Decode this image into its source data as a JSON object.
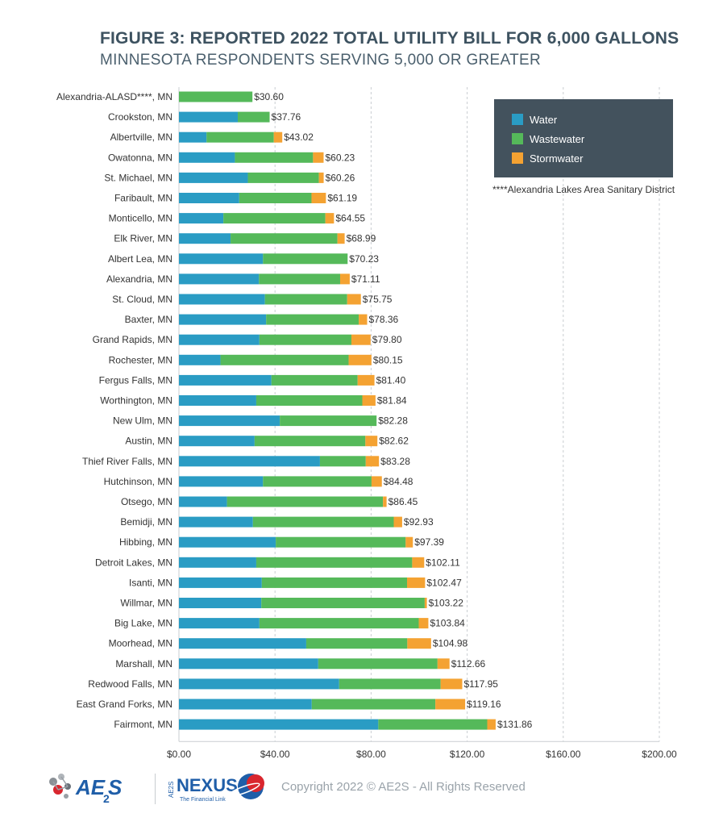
{
  "title": "FIGURE 3: REPORTED 2022 TOTAL UTILITY BILL FOR 6,000 GALLONS",
  "subtitle": "MINNESOTA RESPONDENTS SERVING 5,000 OR GREATER",
  "legend": {
    "items": [
      {
        "label": "Water",
        "color": "#2a9cc4"
      },
      {
        "label": "Wastewater",
        "color": "#55b95a"
      },
      {
        "label": "Stormwater",
        "color": "#f4a232"
      }
    ]
  },
  "footnote": "****Alexandria Lakes Area Sanitary District",
  "footer": {
    "logo_text": "AE2S",
    "nexus_text": "NEXUS",
    "nexus_prefix": "AE2S",
    "nexus_tagline": "The Financial Link",
    "copyright": "Copyright 2022 © AE2S - All Rights Reserved"
  },
  "chart_data": {
    "type": "bar",
    "orientation": "horizontal",
    "stacked": true,
    "xlim": [
      0,
      200
    ],
    "x_ticks": [
      "$0.00",
      "$40.00",
      "$80.00",
      "$120.00",
      "$160.00",
      "$200.00"
    ],
    "grid": "vertical dashed",
    "categories": [
      "Alexandria-ALASD****, MN",
      "Crookston, MN",
      "Albertville, MN",
      "Owatonna, MN",
      "St. Michael, MN",
      "Faribault, MN",
      "Monticello, MN",
      "Elk River, MN",
      "Albert Lea, MN",
      "Alexandria, MN",
      "St. Cloud, MN",
      "Baxter, MN",
      "Grand Rapids, MN",
      "Rochester, MN",
      "Fergus Falls, MN",
      "Worthington, MN",
      "New Ulm, MN",
      "Austin, MN",
      "Thief River Falls, MN",
      "Hutchinson, MN",
      "Otsego, MN",
      "Bemidji, MN",
      "Hibbing, MN",
      "Detroit Lakes, MN",
      "Isanti, MN",
      "Willmar, MN",
      "Big Lake, MN",
      "Moorhead, MN",
      "Marshall, MN",
      "Redwood Falls, MN",
      "East Grand Forks, MN",
      "Fairmont, MN"
    ],
    "series": [
      {
        "name": "Water",
        "color": "#2a9cc4",
        "values": [
          0,
          24.5,
          11.5,
          23.3,
          28.7,
          25.1,
          18.5,
          21.5,
          35.0,
          33.3,
          35.8,
          36.3,
          33.5,
          17.3,
          38.5,
          32.2,
          42.0,
          31.5,
          58.7,
          35.0,
          20.0,
          30.8,
          40.3,
          32.2,
          34.5,
          34.3,
          33.5,
          53.0,
          58.0,
          66.7,
          55.3,
          83.0
        ]
      },
      {
        "name": "Wastewater",
        "color": "#55b95a",
        "values": [
          30.6,
          13.26,
          28.0,
          32.53,
          29.56,
          30.09,
          42.45,
          44.49,
          35.23,
          33.81,
          34.25,
          38.56,
          38.3,
          53.35,
          35.9,
          44.14,
          40.28,
          46.12,
          19.08,
          45.18,
          64.95,
          58.63,
          54.09,
          64.91,
          60.47,
          68.02,
          66.34,
          42.08,
          49.66,
          42.25,
          51.46,
          45.36
        ]
      },
      {
        "name": "Stormwater",
        "color": "#f4a232",
        "values": [
          0,
          0,
          3.52,
          4.4,
          2.0,
          6.0,
          3.6,
          3.0,
          0,
          4.0,
          5.7,
          3.5,
          8.0,
          9.5,
          7.0,
          5.5,
          0,
          5.0,
          5.5,
          4.3,
          1.5,
          3.5,
          3.0,
          5.0,
          7.5,
          0.9,
          4.0,
          9.9,
          5.0,
          9.0,
          12.4,
          3.5
        ]
      }
    ],
    "totals": [
      "$30.60",
      "$37.76",
      "$43.02",
      "$60.23",
      "$60.26",
      "$61.19",
      "$64.55",
      "$68.99",
      "$70.23",
      "$71.11",
      "$75.75",
      "$78.36",
      "$79.80",
      "$80.15",
      "$81.40",
      "$81.84",
      "$82.28",
      "$82.62",
      "$83.28",
      "$84.48",
      "$86.45",
      "$92.93",
      "$97.39",
      "$102.11",
      "$102.47",
      "$103.22",
      "$103.84",
      "$104.98",
      "$112.66",
      "$117.95",
      "$119.16",
      "$131.86"
    ]
  }
}
